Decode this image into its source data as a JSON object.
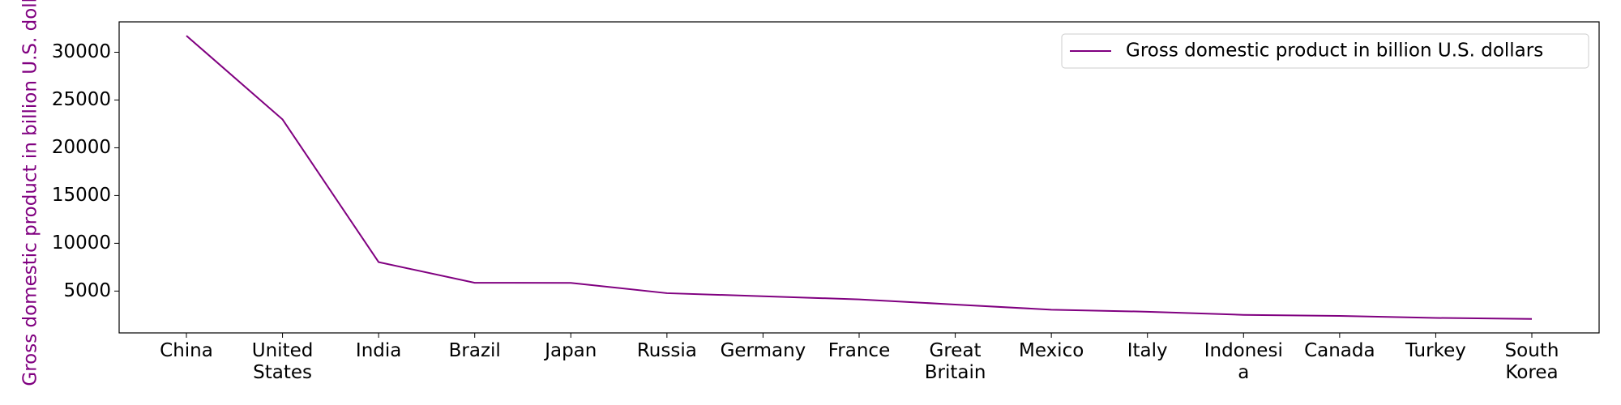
{
  "chart_data": {
    "type": "line",
    "ylabel": "Gross domestic product in billion U.S. dollars",
    "categories": [
      "China",
      "United\nStates",
      "India",
      "Brazil",
      "Japan",
      "Russia",
      "Germany",
      "France",
      "Great\nBritain",
      "Mexico",
      "Italy",
      "Indonesi\na",
      "Canada",
      "Turkey",
      "South\nKorea"
    ],
    "series": [
      {
        "name": "Gross domestic product in billion U.S. dollars",
        "color": "#800080",
        "values": [
          31730,
          22970,
          8030,
          5870,
          5860,
          4780,
          4460,
          4130,
          3590,
          3050,
          2840,
          2510,
          2400,
          2190,
          2080
        ]
      }
    ],
    "ylim": [
      620,
      33180
    ],
    "yticks": [
      5000,
      10000,
      15000,
      20000,
      25000,
      30000
    ],
    "legend": "upper right"
  }
}
